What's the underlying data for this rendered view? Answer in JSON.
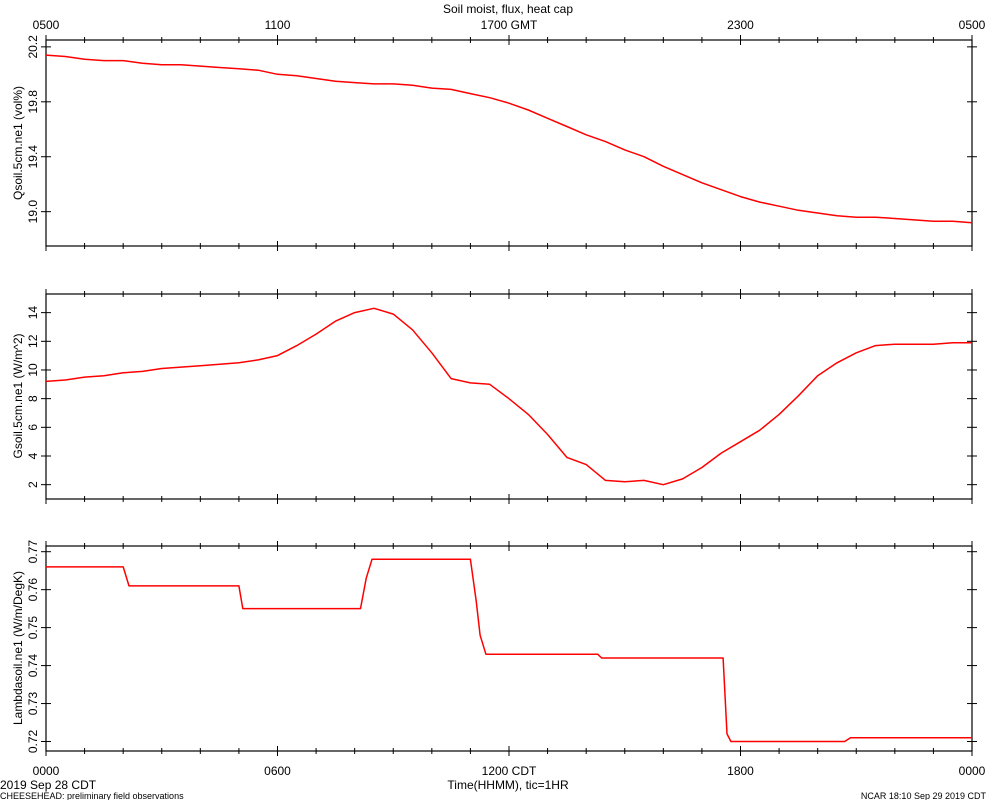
{
  "page": {
    "title": "Soil moist, flux, heat cap",
    "footer_left_date": "2019 Sep 28 CDT",
    "footer_left_project": "CHEESEHEAD: preliminary field observations",
    "footer_right": "NCAR 18:10 Sep 29 2019 CDT",
    "xaxis_label": "Time(HHMM), tic=1HR",
    "line_color": "#ff0000"
  },
  "top_axis": {
    "tick_labels": [
      "0500",
      "1100",
      "1700 GMT",
      "2300",
      "0500"
    ],
    "tick_hours": [
      0,
      6,
      12,
      18,
      24
    ]
  },
  "bottom_axis": {
    "tick_labels": [
      "0000",
      "0600",
      "1200 CDT",
      "1800",
      "0000"
    ],
    "tick_hours": [
      0,
      6,
      12,
      18,
      24
    ]
  },
  "chart_data": [
    {
      "type": "line",
      "ylabel": "Qsoil.5cm.ne1 (vol%)",
      "ylim": [
        18.75,
        20.25
      ],
      "yticks": [
        19.0,
        19.4,
        19.8,
        20.2
      ],
      "ytick_labels": [
        "19.0",
        "19.4",
        "19.8",
        "20.2"
      ],
      "x_hours": [
        0,
        0.5,
        1,
        1.5,
        2,
        2.5,
        3,
        3.5,
        4,
        4.5,
        5,
        5.5,
        6,
        6.5,
        7,
        7.5,
        8,
        8.5,
        9,
        9.5,
        10,
        10.5,
        11,
        11.5,
        12,
        12.5,
        13,
        13.5,
        14,
        14.5,
        15,
        15.5,
        16,
        16.5,
        17,
        17.5,
        18,
        18.5,
        19,
        19.5,
        20,
        20.5,
        21,
        21.5,
        22,
        22.5,
        23,
        23.5,
        24
      ],
      "y": [
        20.14,
        20.13,
        20.11,
        20.1,
        20.1,
        20.08,
        20.07,
        20.07,
        20.06,
        20.05,
        20.04,
        20.03,
        20.0,
        19.99,
        19.97,
        19.95,
        19.94,
        19.93,
        19.93,
        19.92,
        19.9,
        19.89,
        19.86,
        19.83,
        19.79,
        19.74,
        19.68,
        19.62,
        19.56,
        19.51,
        19.45,
        19.4,
        19.33,
        19.27,
        19.21,
        19.16,
        19.11,
        19.07,
        19.04,
        19.01,
        18.99,
        18.97,
        18.96,
        18.96,
        18.95,
        18.94,
        18.93,
        18.93,
        18.92
      ]
    },
    {
      "type": "line",
      "ylabel": "Gsoil.5cm.ne1 (W/m^2)",
      "ylim": [
        1.0,
        15.3
      ],
      "yticks": [
        2,
        4,
        6,
        8,
        10,
        12,
        14
      ],
      "ytick_labels": [
        "2",
        "4",
        "6",
        "8",
        "10",
        "12",
        "14"
      ],
      "x_hours": [
        0,
        0.5,
        1,
        1.5,
        2,
        2.5,
        3,
        3.5,
        4,
        4.5,
        5,
        5.5,
        6,
        6.5,
        7,
        7.5,
        8,
        8.5,
        9,
        9.5,
        10,
        10.5,
        11,
        11.5,
        12,
        12.5,
        13,
        13.5,
        14,
        14.5,
        15,
        15.5,
        16,
        16.5,
        17,
        17.5,
        18,
        18.5,
        19,
        19.5,
        20,
        20.5,
        21,
        21.5,
        22,
        22.5,
        23,
        23.5,
        24
      ],
      "y": [
        9.2,
        9.3,
        9.5,
        9.6,
        9.8,
        9.9,
        10.1,
        10.2,
        10.3,
        10.4,
        10.5,
        10.7,
        11.0,
        11.7,
        12.5,
        13.4,
        14.0,
        14.3,
        13.9,
        12.8,
        11.2,
        9.4,
        9.1,
        9.0,
        8.0,
        6.9,
        5.5,
        3.9,
        3.4,
        2.3,
        2.2,
        2.3,
        2.0,
        2.4,
        3.2,
        4.2,
        5.0,
        5.8,
        6.9,
        8.2,
        9.6,
        10.5,
        11.2,
        11.7,
        11.8,
        11.8,
        11.8,
        11.9,
        11.9
      ]
    },
    {
      "type": "line",
      "ylabel": "Lambdasoil.ne1 (W/m/DegK)",
      "ylim": [
        0.7175,
        0.7715
      ],
      "yticks": [
        0.72,
        0.73,
        0.74,
        0.75,
        0.76,
        0.77
      ],
      "ytick_labels": [
        "0.72",
        "0.73",
        "0.74",
        "0.75",
        "0.76",
        "0.77"
      ],
      "x_hours": [
        0,
        2.0,
        2.15,
        5.0,
        5.1,
        8.15,
        8.3,
        8.45,
        11.0,
        11.15,
        11.25,
        11.4,
        14.3,
        14.4,
        17.55,
        17.65,
        17.75,
        20.7,
        20.85,
        24
      ],
      "y": [
        0.766,
        0.766,
        0.761,
        0.761,
        0.755,
        0.755,
        0.763,
        0.768,
        0.768,
        0.757,
        0.748,
        0.743,
        0.743,
        0.742,
        0.742,
        0.722,
        0.72,
        0.72,
        0.721,
        0.721
      ]
    }
  ]
}
